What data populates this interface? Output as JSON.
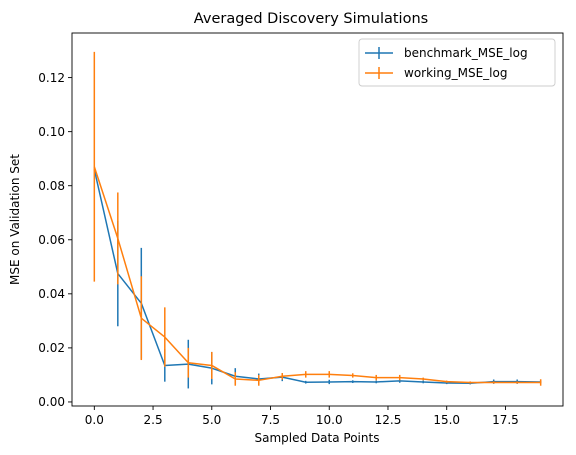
{
  "chart_data": {
    "type": "line",
    "title": "Averaged Discovery Simulations",
    "xlabel": "Sampled Data Points",
    "ylabel": "MSE on Validation Set",
    "xlim": [
      -0.95,
      19.95
    ],
    "ylim": [
      -0.0015,
      0.1365
    ],
    "xticks": [
      0.0,
      2.5,
      5.0,
      7.5,
      10.0,
      12.5,
      15.0,
      17.5
    ],
    "xtick_labels": [
      "0.0",
      "2.5",
      "5.0",
      "7.5",
      "10.0",
      "12.5",
      "15.0",
      "17.5"
    ],
    "yticks": [
      0.0,
      0.02,
      0.04,
      0.06,
      0.08,
      0.1,
      0.12
    ],
    "ytick_labels": [
      "0.00",
      "0.02",
      "0.04",
      "0.06",
      "0.08",
      "0.10",
      "0.12"
    ],
    "grid": false,
    "legend_position": "top-right",
    "x": [
      0,
      1,
      2,
      3,
      4,
      5,
      6,
      7,
      8,
      9,
      10,
      11,
      12,
      13,
      14,
      15,
      16,
      17,
      18,
      19
    ],
    "series": [
      {
        "name": "benchmark_MSE_log",
        "color": "#1f77b4",
        "values": [
          0.086,
          0.0475,
          0.0365,
          0.0135,
          0.014,
          0.0125,
          0.0095,
          0.0085,
          0.0092,
          0.0073,
          0.0074,
          0.0075,
          0.0074,
          0.0078,
          0.0074,
          0.007,
          0.0069,
          0.0075,
          0.0075,
          0.0074
        ],
        "errors": [
          0.0,
          0.0195,
          0.0205,
          0.006,
          0.009,
          0.006,
          0.003,
          0.002,
          0.0015,
          0.0005,
          0.0008,
          0.0005,
          0.0005,
          0.0007,
          0.0005,
          0.0004,
          0.0004,
          0.0008,
          0.0008,
          0.0005
        ]
      },
      {
        "name": "working_MSE_log",
        "color": "#ff7f0e",
        "values": [
          0.087,
          0.0605,
          0.031,
          0.024,
          0.0145,
          0.0135,
          0.0085,
          0.008,
          0.0095,
          0.0102,
          0.0102,
          0.0098,
          0.009,
          0.009,
          0.0085,
          0.0075,
          0.0072,
          0.0072,
          0.0072,
          0.0072
        ],
        "errors": [
          0.0425,
          0.017,
          0.0155,
          0.011,
          0.0055,
          0.005,
          0.0025,
          0.002,
          0.0012,
          0.0012,
          0.0012,
          0.0008,
          0.001,
          0.001,
          0.0005,
          0.0004,
          0.0004,
          0.0004,
          0.0004,
          0.0012
        ]
      }
    ]
  }
}
